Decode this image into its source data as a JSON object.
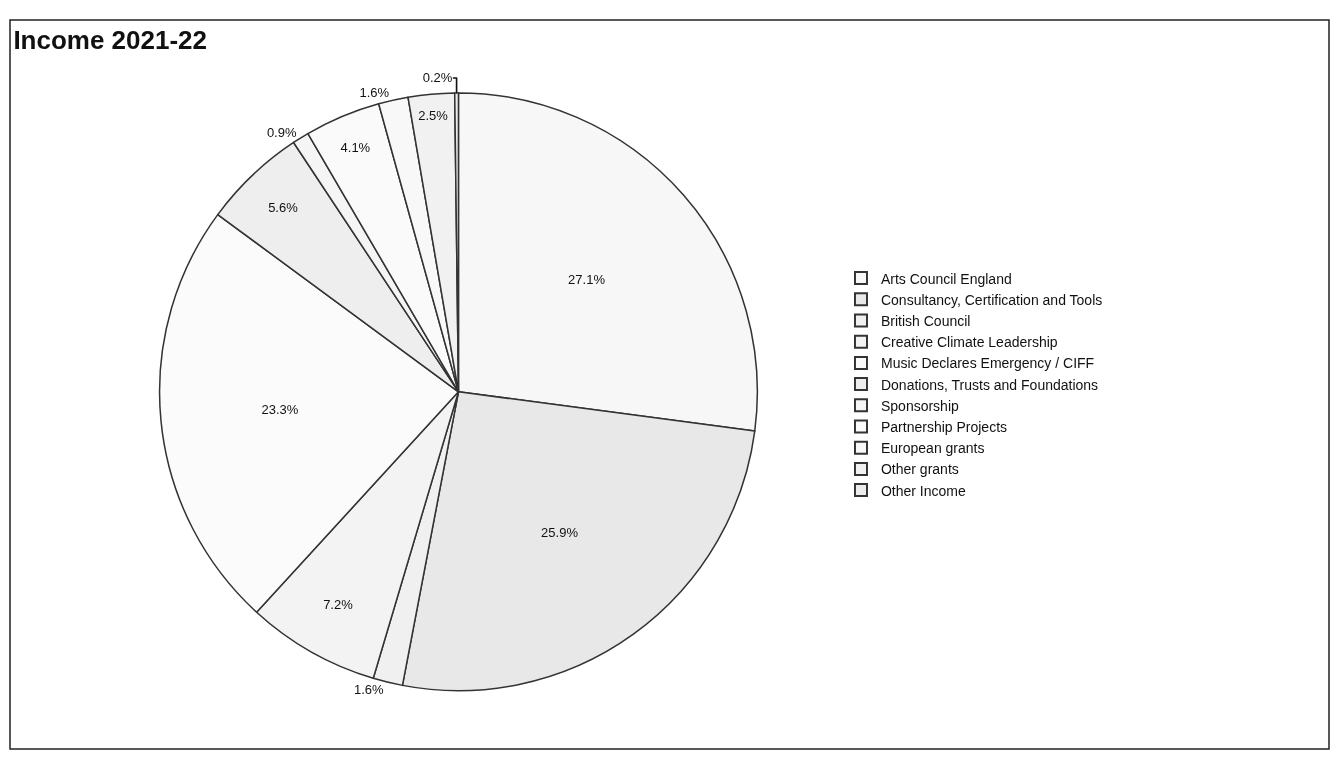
{
  "chart_data": {
    "type": "pie",
    "title": "Income 2021-22",
    "categories": [
      "Arts Council England",
      "Consultancy, Certification and Tools",
      "British Council",
      "Creative Climate Leadership",
      "Music Declares Emergency / CIFF",
      "Donations, Trusts and Foundations",
      "Sponsorship",
      "Partnership Projects",
      "European grants",
      "Other grants",
      "Other Income"
    ],
    "values": [
      27.1,
      25.9,
      1.6,
      7.2,
      23.3,
      5.6,
      0.9,
      4.1,
      1.6,
      2.5,
      0.2
    ],
    "value_labels": [
      "27.1%",
      "25.9%",
      "1.6%",
      "7.2%",
      "23.3%",
      "5.6%",
      "0.9%",
      "4.1%",
      "1.6%",
      "2.5%",
      "0.2%"
    ],
    "colors": [
      "#f7f7f7",
      "#e8e8e8",
      "#f0f0f0",
      "#f3f3f3",
      "#fbfbfb",
      "#eeeeee",
      "#f5f5f5",
      "#fafafa",
      "#f8f8f8",
      "#f1f1f1",
      "#ececec"
    ],
    "legend": "right"
  }
}
